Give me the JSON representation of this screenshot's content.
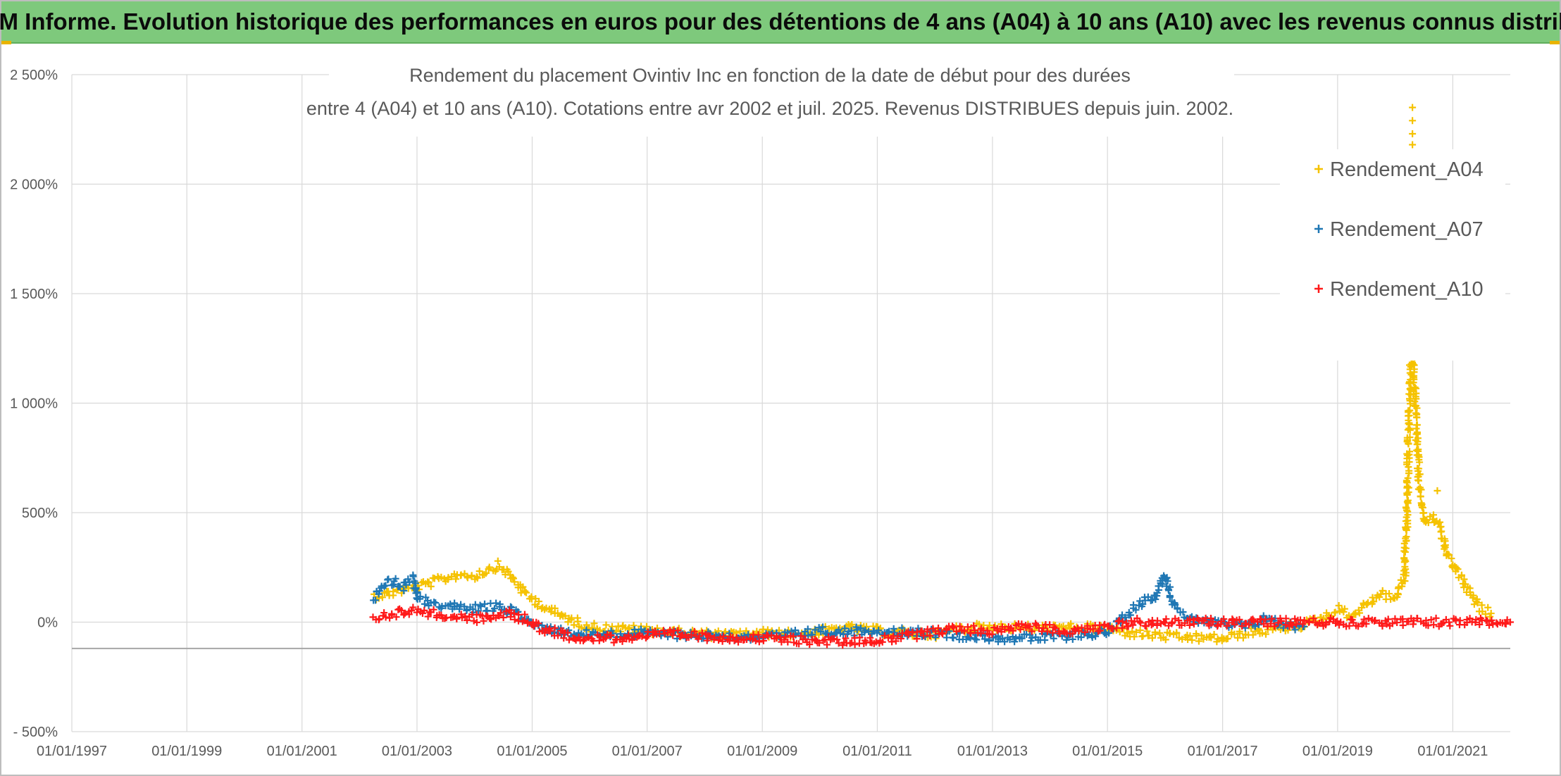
{
  "header": {
    "banner": "ADAM Informe. Evolution historique des performances en euros pour des détentions de 4 ans (A04) à 10 ans (A10) avec les revenus connus distribués"
  },
  "chart_data": {
    "type": "scatter",
    "title": "Rendement du placement Ovintiv Inc en fonction de la date de début pour des durées",
    "subtitle": "entre 4 (A04) et 10 ans (A10). Cotations entre avr 2002 et juil. 2025. Revenus DISTRIBUES depuis juin. 2002.",
    "xlabel": "",
    "ylabel": "",
    "x_range": [
      "1997-01-01",
      "2022-01-01"
    ],
    "ylim": [
      -500,
      2500
    ],
    "y_ticks": [
      -500,
      0,
      500,
      1000,
      1500,
      2000,
      2500
    ],
    "y_tick_labels": [
      "- 500%",
      "0%",
      "500%",
      "1 000%",
      "1 500%",
      "2 000%",
      "2 500%"
    ],
    "x_ticks": [
      "1997-01-01",
      "1999-01-01",
      "2001-01-01",
      "2003-01-01",
      "2005-01-01",
      "2007-01-01",
      "2009-01-01",
      "2011-01-01",
      "2013-01-01",
      "2015-01-01",
      "2017-01-01",
      "2019-01-01",
      "2021-01-01"
    ],
    "x_tick_labels": [
      "01/01/1997",
      "01/01/1999",
      "01/01/2001",
      "01/01/2003",
      "01/01/2005",
      "01/01/2007",
      "01/01/2009",
      "01/01/2011",
      "01/01/2013",
      "01/01/2015",
      "01/01/2017",
      "01/01/2019",
      "01/01/2021"
    ],
    "grid": true,
    "legend_position": "top-right",
    "marker": "+",
    "series": [
      {
        "name": "Rendement_A04",
        "color": "#f5c200",
        "points": [
          [
            "2002-04-01",
            120
          ],
          [
            "2002-07-01",
            130
          ],
          [
            "2002-10-01",
            150
          ],
          [
            "2003-01-01",
            160
          ],
          [
            "2003-04-01",
            180
          ],
          [
            "2003-07-01",
            200
          ],
          [
            "2003-10-01",
            220
          ],
          [
            "2004-01-01",
            210
          ],
          [
            "2004-04-01",
            240
          ],
          [
            "2004-06-01",
            260
          ],
          [
            "2004-09-01",
            200
          ],
          [
            "2004-12-01",
            120
          ],
          [
            "2005-03-01",
            80
          ],
          [
            "2005-06-01",
            40
          ],
          [
            "2005-09-01",
            10
          ],
          [
            "2006-01-01",
            -20
          ],
          [
            "2006-06-01",
            -30
          ],
          [
            "2007-01-01",
            -35
          ],
          [
            "2007-06-01",
            -45
          ],
          [
            "2008-01-01",
            -55
          ],
          [
            "2008-06-01",
            -60
          ],
          [
            "2009-01-01",
            -50
          ],
          [
            "2009-06-01",
            -55
          ],
          [
            "2010-01-01",
            -45
          ],
          [
            "2010-06-01",
            -25
          ],
          [
            "2011-01-01",
            -40
          ],
          [
            "2011-06-01",
            -50
          ],
          [
            "2012-01-01",
            -55
          ],
          [
            "2012-06-01",
            -30
          ],
          [
            "2013-01-01",
            -20
          ],
          [
            "2013-06-01",
            -25
          ],
          [
            "2014-01-01",
            -30
          ],
          [
            "2014-06-01",
            -25
          ],
          [
            "2015-01-01",
            -30
          ],
          [
            "2015-06-01",
            -50
          ],
          [
            "2016-01-01",
            -65
          ],
          [
            "2016-06-01",
            -70
          ],
          [
            "2017-01-01",
            -75
          ],
          [
            "2017-06-01",
            -50
          ],
          [
            "2018-01-01",
            -30
          ],
          [
            "2018-06-01",
            -10
          ],
          [
            "2018-10-01",
            20
          ],
          [
            "2019-01-01",
            60
          ],
          [
            "2019-04-01",
            30
          ],
          [
            "2019-07-01",
            80
          ],
          [
            "2019-10-01",
            130
          ],
          [
            "2020-01-01",
            110
          ],
          [
            "2020-03-01",
            200
          ],
          [
            "2020-03-15",
            500
          ],
          [
            "2020-04-01",
            1000
          ],
          [
            "2020-04-15",
            1400
          ],
          [
            "2020-05-01",
            1100
          ],
          [
            "2020-05-20",
            800
          ],
          [
            "2020-06-10",
            550
          ],
          [
            "2020-07-15",
            450
          ],
          [
            "2020-09-01",
            480
          ],
          [
            "2020-10-15",
            420
          ],
          [
            "2020-12-01",
            300
          ],
          [
            "2021-01-15",
            250
          ],
          [
            "2021-03-01",
            200
          ],
          [
            "2021-05-01",
            110
          ],
          [
            "2021-07-01",
            60
          ],
          [
            "2021-09-01",
            40
          ]
        ],
        "extra_points": [
          [
            "2020-04-20",
            2350
          ],
          [
            "2020-04-20",
            2290
          ],
          [
            "2020-04-20",
            2230
          ],
          [
            "2020-04-20",
            2180
          ],
          [
            "2020-04-05",
            1260
          ],
          [
            "2020-04-10",
            1230
          ],
          [
            "2020-09-25",
            600
          ],
          [
            "2020-05-25",
            840
          ]
        ]
      },
      {
        "name": "Rendement_A07",
        "color": "#1f77b4",
        "points": [
          [
            "2002-04-01",
            110
          ],
          [
            "2002-06-01",
            170
          ],
          [
            "2002-08-01",
            190
          ],
          [
            "2002-10-01",
            160
          ],
          [
            "2002-12-01",
            200
          ],
          [
            "2003-01-15",
            100
          ],
          [
            "2003-06-01",
            80
          ],
          [
            "2003-12-01",
            60
          ],
          [
            "2004-06-01",
            70
          ],
          [
            "2004-10-01",
            40
          ],
          [
            "2005-01-01",
            -10
          ],
          [
            "2005-06-01",
            -40
          ],
          [
            "2006-01-01",
            -55
          ],
          [
            "2006-06-01",
            -55
          ],
          [
            "2007-01-01",
            -50
          ],
          [
            "2007-06-01",
            -55
          ],
          [
            "2008-01-01",
            -60
          ],
          [
            "2008-06-01",
            -65
          ],
          [
            "2009-01-01",
            -70
          ],
          [
            "2009-06-01",
            -60
          ],
          [
            "2010-01-01",
            -40
          ],
          [
            "2010-06-01",
            -45
          ],
          [
            "2011-01-01",
            -35
          ],
          [
            "2011-06-01",
            -45
          ],
          [
            "2012-01-01",
            -50
          ],
          [
            "2012-06-01",
            -60
          ],
          [
            "2013-01-01",
            -70
          ],
          [
            "2013-06-01",
            -75
          ],
          [
            "2014-01-01",
            -70
          ],
          [
            "2014-06-01",
            -60
          ],
          [
            "2015-01-01",
            -45
          ],
          [
            "2015-06-01",
            50
          ],
          [
            "2015-08-01",
            90
          ],
          [
            "2015-11-01",
            120
          ],
          [
            "2016-01-01",
            220
          ],
          [
            "2016-03-01",
            60
          ],
          [
            "2016-06-01",
            20
          ],
          [
            "2016-10-01",
            0
          ],
          [
            "2017-01-01",
            -10
          ],
          [
            "2017-06-01",
            -20
          ],
          [
            "2017-10-01",
            20
          ],
          [
            "2018-01-01",
            -10
          ],
          [
            "2018-06-01",
            -20
          ]
        ],
        "extra_points": []
      },
      {
        "name": "Rendement_A10",
        "color": "#ff1a1a",
        "points": [
          [
            "2002-04-01",
            20
          ],
          [
            "2002-08-01",
            40
          ],
          [
            "2002-12-01",
            55
          ],
          [
            "2003-04-01",
            40
          ],
          [
            "2003-10-01",
            20
          ],
          [
            "2004-03-01",
            15
          ],
          [
            "2004-08-01",
            40
          ],
          [
            "2004-12-01",
            10
          ],
          [
            "2005-03-01",
            -30
          ],
          [
            "2005-08-01",
            -60
          ],
          [
            "2006-01-01",
            -70
          ],
          [
            "2006-06-01",
            -75
          ],
          [
            "2007-01-01",
            -60
          ],
          [
            "2007-06-01",
            -55
          ],
          [
            "2008-01-01",
            -65
          ],
          [
            "2008-06-01",
            -70
          ],
          [
            "2009-01-01",
            -75
          ],
          [
            "2009-06-01",
            -80
          ],
          [
            "2010-01-01",
            -85
          ],
          [
            "2010-06-01",
            -90
          ],
          [
            "2011-01-01",
            -80
          ],
          [
            "2011-06-01",
            -70
          ],
          [
            "2012-01-01",
            -40
          ],
          [
            "2012-06-01",
            -30
          ],
          [
            "2013-01-01",
            -40
          ],
          [
            "2013-06-01",
            -20
          ],
          [
            "2014-01-01",
            -30
          ],
          [
            "2014-06-01",
            -40
          ],
          [
            "2015-01-01",
            -20
          ],
          [
            "2015-04-01",
            -10
          ],
          [
            "2015-06-01",
            0
          ],
          [
            "2016-01-01",
            0
          ],
          [
            "2017-01-01",
            0
          ],
          [
            "2018-01-01",
            0
          ],
          [
            "2019-01-01",
            0
          ],
          [
            "2020-01-01",
            0
          ],
          [
            "2021-01-01",
            0
          ],
          [
            "2022-01-01",
            0
          ]
        ],
        "extra_points": []
      }
    ]
  }
}
